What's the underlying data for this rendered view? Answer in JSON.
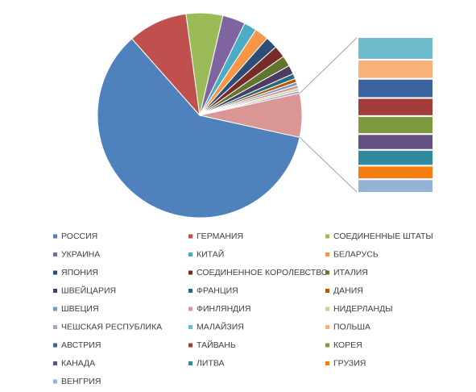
{
  "chart_data": {
    "type": "bar-of-pie",
    "categories": [
      "РОССИЯ",
      "ГЕРМАНИЯ",
      "СОЕДИНЕННЫЕ ШТАТЫ",
      "УКРАИНА",
      "КИТАЙ",
      "БЕЛАРУСЬ",
      "ЯПОНИЯ",
      "СОЕДИНЕННОЕ КОРОЛЕВСТВО",
      "ИТАЛИЯ",
      "ШВЕЙЦАРИЯ",
      "ФРАНЦИЯ",
      "ДАНИЯ",
      "ШВЕЦИЯ",
      "ФИНЛЯНДИЯ",
      "НИДЕРЛАНДЫ",
      "ЧЕШСКАЯ РЕСПУБЛИКА",
      "МАЛАЙЗИЯ",
      "ПОЛЬША",
      "АВСТРИЯ",
      "ТАЙВАНЬ",
      "КОРЕЯ",
      "КАНАДА",
      "ЛИТВА",
      "ГРУЗИЯ",
      "ВЕНГРИЯ"
    ],
    "values": [
      60,
      9.4,
      5.8,
      3.6,
      2.0,
      2.2,
      1.9,
      1.9,
      1.7,
      1.4,
      0.8,
      0.6,
      0.5,
      0.5,
      0.4,
      0.4,
      1.0,
      0.85,
      0.85,
      0.8,
      0.8,
      0.7,
      0.7,
      0.6,
      0.6
    ],
    "colors": [
      "#4f81bd",
      "#c0504d",
      "#9bbb59",
      "#8064a2",
      "#4bacc6",
      "#f79646",
      "#2c4d75",
      "#772c2a",
      "#5f7530",
      "#4d3b62",
      "#276a7c",
      "#b65708",
      "#729aca",
      "#d99694",
      "#c3d69b",
      "#b3a2c7",
      "#6fbccf",
      "#fbb27a",
      "#3a64a0",
      "#a33b38",
      "#7d9a3f",
      "#654f82",
      "#2f8aa0",
      "#f57d0f",
      "#95b3d7"
    ],
    "secondary_count": 9,
    "other_color": "#d99694",
    "legend": "bottom"
  }
}
